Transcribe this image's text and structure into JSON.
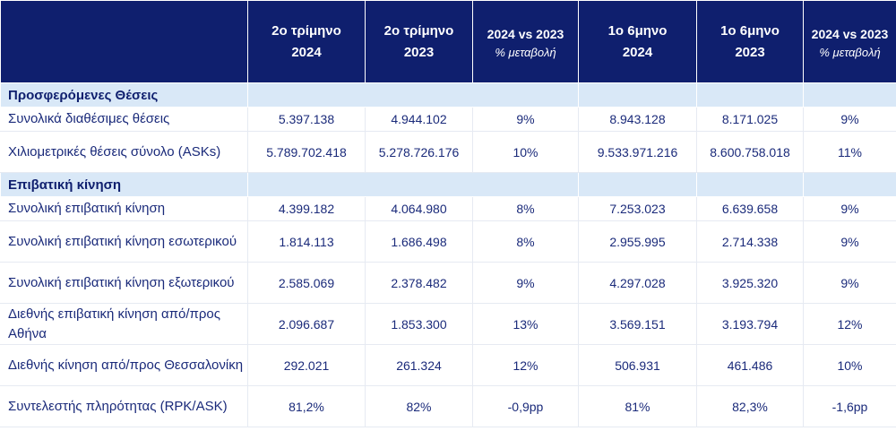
{
  "header": {
    "columns": [
      {
        "line1": "2ο τρίμηνο",
        "line2": "2024"
      },
      {
        "line1": "2ο τρίμηνο",
        "line2": "2023"
      },
      {
        "line1": "2024 vs 2023",
        "line2": "% μεταβολή"
      },
      {
        "line1": "1ο  6μηνο",
        "line2": "2024"
      },
      {
        "line1": "1ο  6μηνο",
        "line2": "2023"
      },
      {
        "line1": "2024 vs 2023",
        "line2": "% μεταβολή"
      }
    ]
  },
  "sections": {
    "offered": "Προσφερόμενες Θέσεις",
    "traffic": "Επιβατική κίνηση"
  },
  "rows": [
    {
      "label": "Συνολικά διαθέσιμες θέσεις",
      "values": [
        "5.397.138",
        "4.944.102",
        "9%",
        "8.943.128",
        "8.171.025",
        "9%"
      ]
    },
    {
      "label": "Χιλιομετρικές θέσεις σύνολο (ASKs)",
      "values": [
        "5.789.702.418",
        "5.278.726.176",
        "10%",
        "9.533.971.216",
        "8.600.758.018",
        "11%"
      ]
    },
    {
      "label": "Συνολική επιβατική κίνηση",
      "values": [
        "4.399.182",
        "4.064.980",
        "8%",
        "7.253.023",
        "6.639.658",
        "9%"
      ]
    },
    {
      "label": "Συνολική επιβατική κίνηση εσωτερικού",
      "values": [
        "1.814.113",
        "1.686.498",
        "8%",
        "2.955.995",
        "2.714.338",
        "9%"
      ]
    },
    {
      "label": "Συνολική επιβατική κίνηση εξωτερικού",
      "values": [
        "2.585.069",
        "2.378.482",
        "9%",
        "4.297.028",
        "3.925.320",
        "9%"
      ]
    },
    {
      "label": "Διεθνής επιβατική κίνηση από/προς Αθήνα",
      "values": [
        "2.096.687",
        "1.853.300",
        "13%",
        "3.569.151",
        "3.193.794",
        "12%"
      ]
    },
    {
      "label": "Διεθνής κίνηση  από/προς Θεσσαλονίκη",
      "values": [
        "292.021",
        "261.324",
        "12%",
        "506.931",
        "461.486",
        "10%"
      ]
    },
    {
      "label": "Συντελεστής πληρότητας (RPK/ASK)",
      "values": [
        "81,2%",
        "82%",
        "-0,9pp",
        "81%",
        "82,3%",
        "-1,6pp"
      ]
    }
  ]
}
